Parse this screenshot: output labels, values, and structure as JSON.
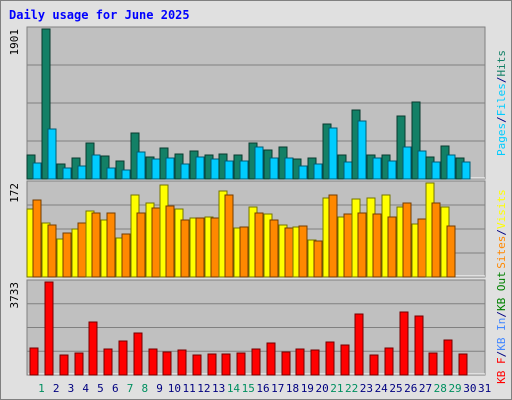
{
  "title": "Daily usage for June 2025",
  "colors": {
    "background": "#e0e0e0",
    "plot_area": "#c0c0c0",
    "gridline": "#808080",
    "hits": "#138066",
    "files": "#00ccff",
    "pages": "#00ccff",
    "visits": "#ffff00",
    "sites": "#ff8800",
    "kb_out": "#008000",
    "kb_in": "#4488ff",
    "kb_f": "#ff0000",
    "weekend_day": "#009060",
    "weekday_day": "#000080",
    "title": "#0000ff"
  },
  "chart_data": [
    {
      "type": "bar",
      "panel": "hits-files-pages",
      "ymax_label": "1901",
      "ylim": [
        0,
        1901
      ],
      "side_labels": [
        "Pages",
        "/",
        "Files",
        "/",
        "Hits"
      ],
      "side_label_colors": [
        "#00ccff",
        "#000080",
        "#00ccff",
        "#000080",
        "#138066"
      ],
      "grid": true,
      "categories": [
        "1",
        "2",
        "3",
        "4",
        "5",
        "6",
        "7",
        "8",
        "9",
        "10",
        "11",
        "12",
        "13",
        "14",
        "15",
        "16",
        "17",
        "18",
        "19",
        "20",
        "21",
        "22",
        "23",
        "24",
        "25",
        "26",
        "27",
        "28",
        "29",
        "30",
        "31"
      ],
      "series": [
        {
          "name": "Hits",
          "color": "#138066",
          "values": [
            310,
            1901,
            190,
            270,
            450,
            290,
            230,
            580,
            280,
            390,
            320,
            360,
            300,
            320,
            310,
            450,
            370,
            400,
            250,
            260,
            700,
            310,
            870,
            310,
            300,
            800,
            970,
            280,
            420,
            270,
            0
          ]
        },
        {
          "name": "Files",
          "color": "#00ccff",
          "values": [
            200,
            640,
            140,
            170,
            310,
            140,
            110,
            340,
            250,
            260,
            190,
            280,
            250,
            230,
            230,
            400,
            270,
            260,
            170,
            190,
            650,
            220,
            740,
            260,
            230,
            400,
            360,
            220,
            310,
            220,
            0
          ]
        },
        {
          "name": "Pages",
          "color": "#00ccff",
          "values": [
            0,
            0,
            0,
            0,
            0,
            0,
            0,
            0,
            0,
            0,
            0,
            0,
            0,
            0,
            0,
            0,
            0,
            0,
            0,
            0,
            0,
            0,
            0,
            0,
            0,
            0,
            0,
            0,
            0,
            0,
            0
          ]
        }
      ]
    },
    {
      "type": "bar",
      "panel": "visits-sites",
      "ymax_label": "172",
      "ylim": [
        0,
        172
      ],
      "side_labels": [
        "Sites",
        "/",
        "Visits"
      ],
      "side_label_colors": [
        "#ff8800",
        "#000080",
        "#ffff00"
      ],
      "grid": true,
      "categories": [
        "1",
        "2",
        "3",
        "4",
        "5",
        "6",
        "7",
        "8",
        "9",
        "10",
        "11",
        "12",
        "13",
        "14",
        "15",
        "16",
        "17",
        "18",
        "19",
        "20",
        "21",
        "22",
        "23",
        "24",
        "25",
        "26",
        "27",
        "28",
        "29",
        "30",
        "31"
      ],
      "series": [
        {
          "name": "Visits",
          "color": "#ffff00",
          "values": [
            125,
            98,
            70,
            88,
            120,
            105,
            72,
            150,
            136,
            168,
            125,
            108,
            110,
            158,
            90,
            128,
            115,
            95,
            92,
            68,
            145,
            110,
            143,
            145,
            150,
            128,
            97,
            172,
            128,
            0,
            0
          ]
        },
        {
          "name": "Sites",
          "color": "#ff8800",
          "values": [
            140,
            95,
            80,
            98,
            118,
            118,
            78,
            118,
            127,
            130,
            105,
            108,
            108,
            150,
            91,
            118,
            105,
            90,
            94,
            66,
            150,
            115,
            118,
            115,
            110,
            135,
            106,
            135,
            93,
            0,
            0
          ]
        }
      ]
    },
    {
      "type": "bar",
      "panel": "kb",
      "ymax_label": "3733",
      "ylim": [
        0,
        3733
      ],
      "side_labels": [
        "KB F",
        "/",
        "KB In",
        "/",
        "KB Out"
      ],
      "side_label_colors": [
        "#ff0000",
        "#000080",
        "#4488ff",
        "#000080",
        "#008000"
      ],
      "grid": true,
      "categories": [
        "1",
        "2",
        "3",
        "4",
        "5",
        "6",
        "7",
        "8",
        "9",
        "10",
        "11",
        "12",
        "13",
        "14",
        "15",
        "16",
        "17",
        "18",
        "19",
        "20",
        "21",
        "22",
        "23",
        "24",
        "25",
        "26",
        "27",
        "28",
        "29",
        "30",
        "31"
      ],
      "series": [
        {
          "name": "KB F",
          "color": "#ff0000",
          "values": [
            1080,
            3733,
            820,
            900,
            2130,
            1060,
            1360,
            1680,
            1060,
            910,
            990,
            800,
            830,
            840,
            870,
            1060,
            1270,
            930,
            1060,
            1020,
            1340,
            1220,
            2450,
            810,
            1090,
            2530,
            2360,
            900,
            1400,
            850,
            0
          ]
        }
      ]
    }
  ],
  "days": [
    {
      "label": "1",
      "weekend": true
    },
    {
      "label": "2",
      "weekend": false
    },
    {
      "label": "3",
      "weekend": false
    },
    {
      "label": "4",
      "weekend": false
    },
    {
      "label": "5",
      "weekend": false
    },
    {
      "label": "6",
      "weekend": false
    },
    {
      "label": "7",
      "weekend": true
    },
    {
      "label": "8",
      "weekend": true
    },
    {
      "label": "9",
      "weekend": false
    },
    {
      "label": "10",
      "weekend": false
    },
    {
      "label": "11",
      "weekend": false
    },
    {
      "label": "12",
      "weekend": false
    },
    {
      "label": "13",
      "weekend": false
    },
    {
      "label": "14",
      "weekend": true
    },
    {
      "label": "15",
      "weekend": true
    },
    {
      "label": "16",
      "weekend": false
    },
    {
      "label": "17",
      "weekend": false
    },
    {
      "label": "18",
      "weekend": false
    },
    {
      "label": "19",
      "weekend": false
    },
    {
      "label": "20",
      "weekend": false
    },
    {
      "label": "21",
      "weekend": true
    },
    {
      "label": "22",
      "weekend": true
    },
    {
      "label": "23",
      "weekend": false
    },
    {
      "label": "24",
      "weekend": false
    },
    {
      "label": "25",
      "weekend": false
    },
    {
      "label": "26",
      "weekend": false
    },
    {
      "label": "27",
      "weekend": false
    },
    {
      "label": "28",
      "weekend": true
    },
    {
      "label": "29",
      "weekend": true
    },
    {
      "label": "30",
      "weekend": false
    },
    {
      "label": "31",
      "weekend": false
    }
  ]
}
